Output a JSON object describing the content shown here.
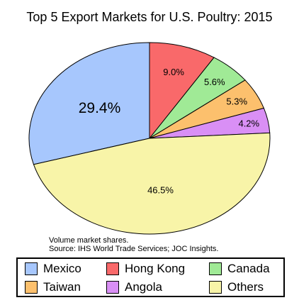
{
  "chart_data": {
    "type": "pie",
    "title": "Top 5 Export Markets for U.S. Poultry: 2015",
    "slices": [
      {
        "label": "Mexico",
        "value": 29.4,
        "display": "29.4%",
        "color": "#a7c7fd"
      },
      {
        "label": "Hong Kong",
        "value": 9.0,
        "display": "9.0%",
        "color": "#f9696a"
      },
      {
        "label": "Canada",
        "value": 5.6,
        "display": "5.6%",
        "color": "#a0ea96"
      },
      {
        "label": "Taiwan",
        "value": 5.3,
        "display": "5.3%",
        "color": "#fcc06d"
      },
      {
        "label": "Angola",
        "value": 4.2,
        "display": "4.2%",
        "color": "#d98ff5"
      },
      {
        "label": "Others",
        "value": 46.5,
        "display": "46.5%",
        "color": "#f8f4a8"
      }
    ],
    "note": "Volume market shares.",
    "source": "Source: IHS World Trade Services; JOC Insights.",
    "legend_position": "bottom"
  }
}
